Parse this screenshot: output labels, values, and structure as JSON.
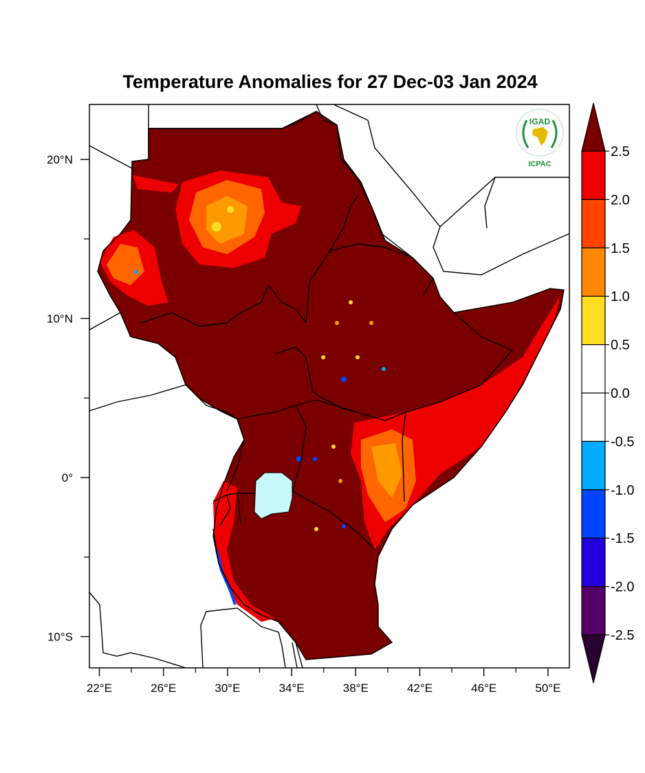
{
  "title": "Temperature Anomalies for 27 Dec-03 Jan 2024",
  "logo": {
    "top": "IGAD",
    "bottom": "ICPAC"
  },
  "y_ticks": [
    {
      "label": "20°N",
      "lat": 20
    },
    {
      "label": "10°N",
      "lat": 10
    },
    {
      "label": "0°",
      "lat": 0
    },
    {
      "label": "10°S",
      "lat": -10
    }
  ],
  "x_ticks": [
    {
      "label": "22°E",
      "lon": 22
    },
    {
      "label": "26°E",
      "lon": 26
    },
    {
      "label": "30°E",
      "lon": 30
    },
    {
      "label": "34°E",
      "lon": 34
    },
    {
      "label": "38°E",
      "lon": 38
    },
    {
      "label": "42°E",
      "lon": 42
    },
    {
      "label": "46°E",
      "lon": 46
    },
    {
      "label": "50°E",
      "lon": 50
    }
  ],
  "colorbar": {
    "labels": [
      "2.5",
      "2.0",
      "1.5",
      "1.0",
      "0.5",
      "0.0",
      "-0.5",
      "-1.0",
      "-1.5",
      "-2.0",
      "-2.5"
    ],
    "colors": [
      "#7a0000",
      "#ee0000",
      "#ff4400",
      "#ff8800",
      "#ffdd22",
      "#ffffff",
      "#ffffff",
      "#00aaff",
      "#0044ff",
      "#2200dd",
      "#550066",
      "#2a0033"
    ]
  },
  "palette": {
    "region": "#7a0000",
    "anom_high": "#ee0000",
    "anom_mid": "#ff6600",
    "anom_warm": "#ff9900",
    "anom_low": "#ffdd22",
    "lake": "#c8f8fa"
  }
}
